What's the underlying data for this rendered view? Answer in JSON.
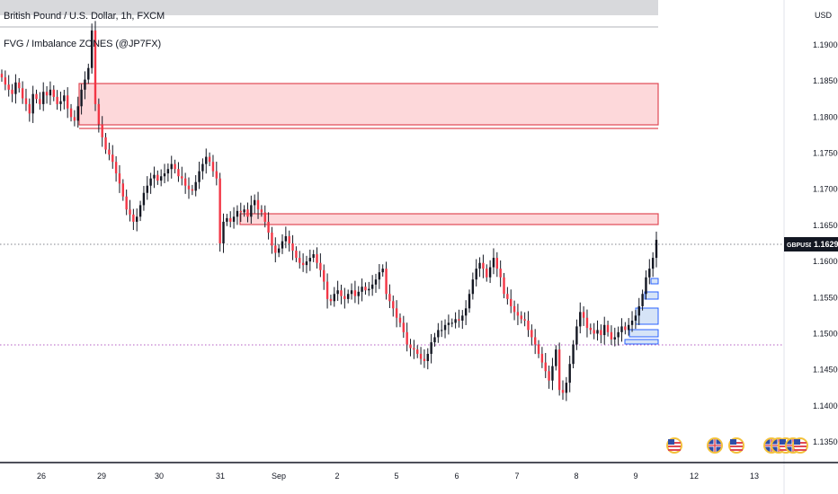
{
  "header": {
    "title": "British Pound / U.S. Dollar, 1h, FXCM",
    "indicator": "FVG / Imbalance ZONES (@JP7FX)"
  },
  "price_axis": {
    "currency": "USD",
    "ticks": [
      "1.19000",
      "1.18500",
      "1.18000",
      "1.17500",
      "1.17000",
      "1.16500",
      "1.16000",
      "1.15500",
      "1.15000",
      "1.14500",
      "1.14000",
      "1.13500"
    ]
  },
  "time_axis": {
    "ticks": [
      "26",
      "29",
      "30",
      "31",
      "Sep",
      "2",
      "5",
      "6",
      "7",
      "8",
      "9",
      "12",
      "13"
    ]
  },
  "symbol_tag": "GBPUSD",
  "last_price": "1.16297",
  "colors": {
    "bull": "#089981",
    "bear": "#f23645",
    "candle": "#131722",
    "zone_fill_red": "#fdd8da",
    "zone_border_red": "#e04a55",
    "zone_fill_blue": "#d6e4f7",
    "zone_border_blue": "#2962ff",
    "header_bar": "#d8d9dc"
  },
  "chart_data": {
    "type": "candlestick",
    "symbol": "GBPUSD",
    "interval": "1h",
    "ylim": [
      1.1335,
      1.1945
    ],
    "last": 1.16297,
    "close_series": [
      1.1855,
      1.1845,
      1.1838,
      1.1832,
      1.1848,
      1.184,
      1.1826,
      1.1818,
      1.1805,
      1.1832,
      1.1825,
      1.1818,
      1.1835,
      1.183,
      1.1838,
      1.1828,
      1.1818,
      1.1822,
      1.183,
      1.1812,
      1.18,
      1.1795,
      1.1815,
      1.1838,
      1.1852,
      1.1868,
      1.192,
      1.1818,
      1.179,
      1.1772,
      1.1755,
      1.1748,
      1.1738,
      1.1722,
      1.1708,
      1.169,
      1.1672,
      1.1665,
      1.1655,
      1.1662,
      1.1678,
      1.1695,
      1.1705,
      1.1715,
      1.172,
      1.1712,
      1.1718,
      1.1722,
      1.1728,
      1.1735,
      1.1728,
      1.1718,
      1.1715,
      1.1705,
      1.17,
      1.1698,
      1.171,
      1.1725,
      1.1735,
      1.1745,
      1.1738,
      1.1725,
      1.1715,
      1.1625,
      1.1655,
      1.166,
      1.1655,
      1.1662,
      1.167,
      1.1668,
      1.1672,
      1.1662,
      1.1678,
      1.1685,
      1.1672,
      1.1668,
      1.1655,
      1.164,
      1.1622,
      1.1612,
      1.1618,
      1.1628,
      1.1635,
      1.1625,
      1.1615,
      1.1605,
      1.1598,
      1.1595,
      1.16,
      1.1605,
      1.161,
      1.1598,
      1.1588,
      1.1572,
      1.1548,
      1.1545,
      1.1555,
      1.156,
      1.1552,
      1.1548,
      1.1555,
      1.156,
      1.1552,
      1.1558,
      1.1565,
      1.156,
      1.1562,
      1.1568,
      1.1575,
      1.1585,
      1.159,
      1.1555,
      1.1545,
      1.1535,
      1.1522,
      1.1515,
      1.1502,
      1.1485,
      1.148,
      1.1478,
      1.1472,
      1.1465,
      1.1462,
      1.1472,
      1.1488,
      1.1495,
      1.1505,
      1.1505,
      1.1512,
      1.1515,
      1.1515,
      1.152,
      1.1518,
      1.1525,
      1.1535,
      1.1555,
      1.1575,
      1.159,
      1.1598,
      1.159,
      1.1578,
      1.1592,
      1.1605,
      1.159,
      1.1578,
      1.1555,
      1.1548,
      1.1538,
      1.153,
      1.1525,
      1.152,
      1.1518,
      1.1505,
      1.1495,
      1.1485,
      1.1472,
      1.146,
      1.1448,
      1.1435,
      1.1455,
      1.1478,
      1.1422,
      1.1418,
      1.1432,
      1.1458,
      1.1485,
      1.151,
      1.153,
      1.1522,
      1.1508,
      1.1505,
      1.15,
      1.1505,
      1.1498,
      1.1512,
      1.1502,
      1.1492,
      1.1495,
      1.1502,
      1.151,
      1.1505,
      1.1512,
      1.1518,
      1.1525,
      1.1538,
      1.1555,
      1.1578,
      1.159,
      1.1605,
      1.163
    ]
  }
}
